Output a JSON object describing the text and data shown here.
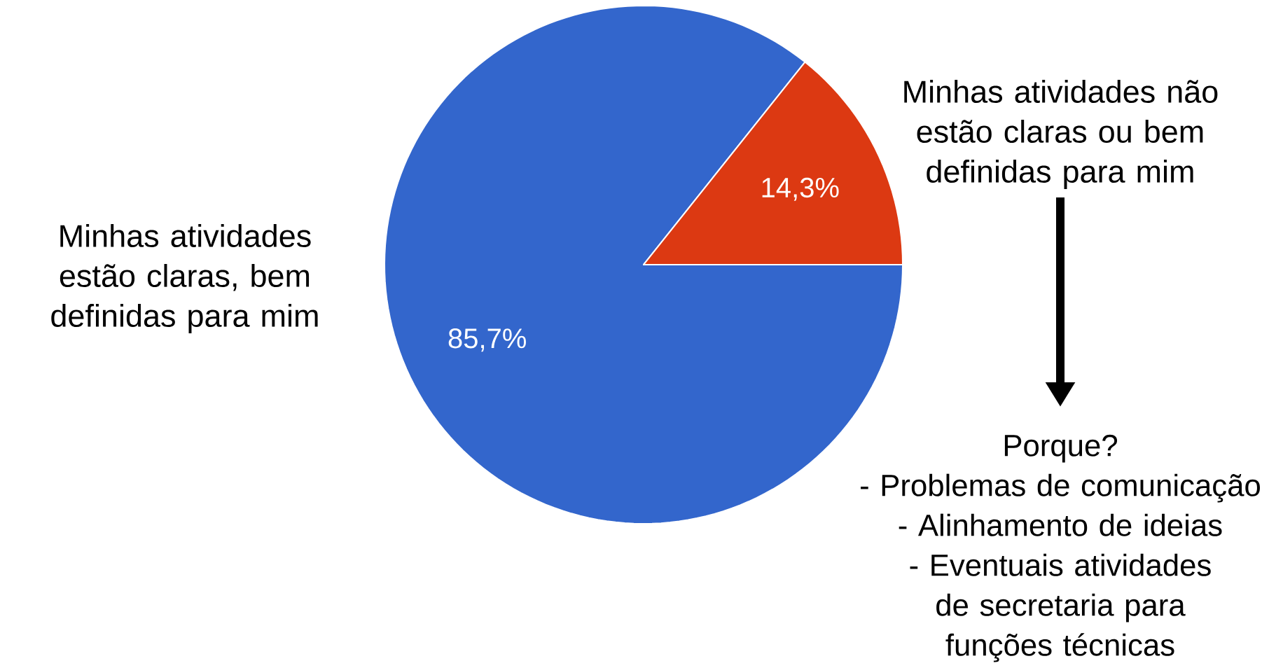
{
  "chart_data": {
    "type": "pie",
    "categories": [
      "Minhas atividades estão claras, bem definidas para mim",
      "Minhas atividades não estão claras ou bem definidas para mim"
    ],
    "values": [
      85.7,
      14.3
    ],
    "colors": [
      "#3366cc",
      "#dc3912"
    ],
    "value_labels": [
      "85,7%",
      "14,3%"
    ],
    "annotations": [
      "Porque?",
      "- Problemas de comunicação",
      "- Alinhamento de ideias",
      "- Eventuais atividades de secretaria para funções técnicas"
    ]
  }
}
